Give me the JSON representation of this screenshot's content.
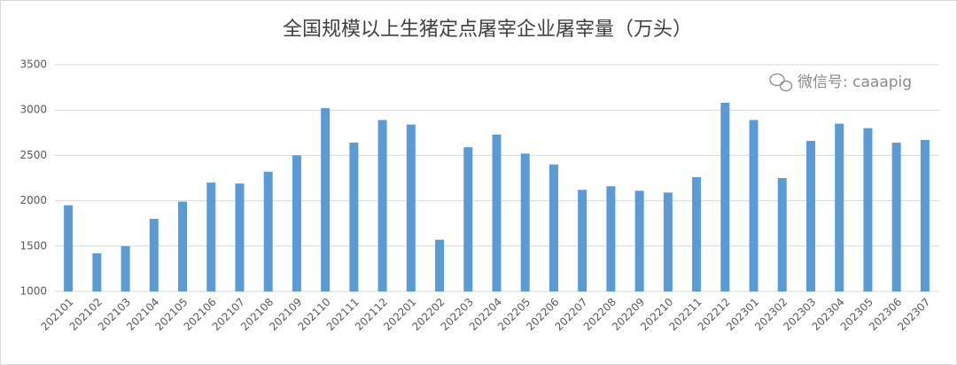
{
  "chart_data": {
    "type": "bar",
    "title": "全国规模以上生猪定点屠宰企业屠宰量（万头）",
    "watermark": "微信号: caaapig",
    "categories": [
      "202101",
      "202102",
      "202103",
      "202104",
      "202105",
      "202106",
      "202107",
      "202108",
      "202109",
      "202110",
      "202111",
      "202112",
      "202201",
      "202202",
      "202203",
      "202204",
      "202205",
      "202206",
      "202207",
      "202208",
      "202209",
      "202210",
      "202211",
      "202212",
      "202301",
      "202302",
      "202303",
      "202304",
      "202305",
      "202306",
      "202307"
    ],
    "values": [
      1950,
      1420,
      1500,
      1800,
      1990,
      2200,
      2190,
      2320,
      2500,
      3020,
      2640,
      2890,
      2840,
      1570,
      2590,
      2730,
      2520,
      2400,
      2120,
      2160,
      2110,
      2090,
      2260,
      3080,
      2890,
      2250,
      2660,
      2850,
      2800,
      2640,
      2670
    ],
    "color": "#5b9bd5",
    "ylim": [
      1000,
      3500
    ],
    "yticks": [
      1000,
      1500,
      2000,
      2500,
      3000,
      3500
    ],
    "grid": true
  }
}
